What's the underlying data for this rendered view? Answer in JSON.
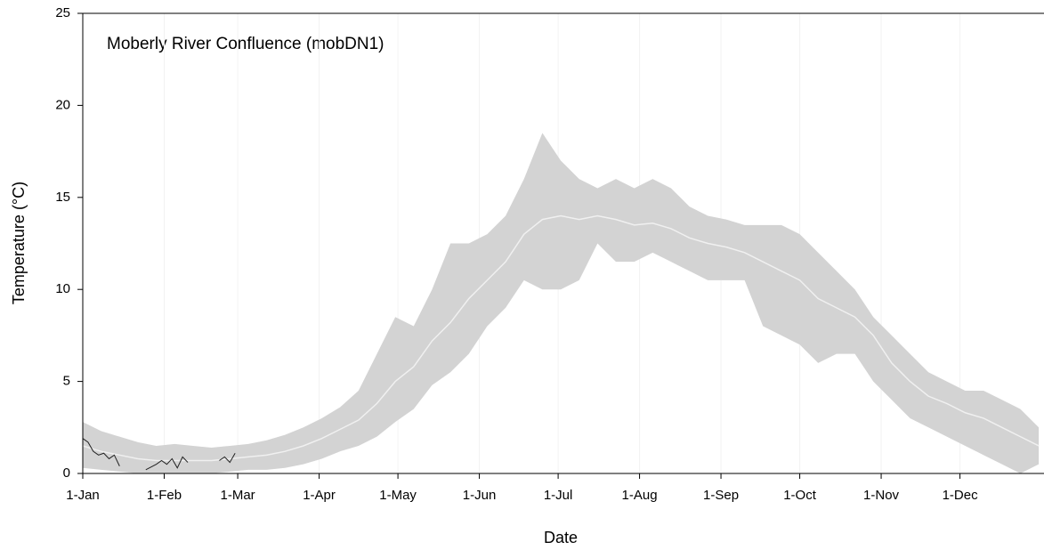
{
  "chart_data": {
    "type": "band",
    "title": "Moberly River Confluence (mobDN1)",
    "x_label": "Date",
    "y_label": "Temperature (°C)",
    "xlim": [
      0,
      366
    ],
    "xticks": [
      {
        "value": 0,
        "label": "1-Jan"
      },
      {
        "value": 31,
        "label": "1-Feb"
      },
      {
        "value": 59,
        "label": "1-Mar"
      },
      {
        "value": 90,
        "label": "1-Apr"
      },
      {
        "value": 120,
        "label": "1-May"
      },
      {
        "value": 151,
        "label": "1-Jun"
      },
      {
        "value": 181,
        "label": "1-Jul"
      },
      {
        "value": 212,
        "label": "1-Aug"
      },
      {
        "value": 243,
        "label": "1-Sep"
      },
      {
        "value": 273,
        "label": "1-Oct"
      },
      {
        "value": 304,
        "label": "1-Nov"
      },
      {
        "value": 334,
        "label": "1-Dec"
      }
    ],
    "ylim": [
      0,
      25
    ],
    "yticks": [
      0,
      5,
      10,
      15,
      20,
      25
    ],
    "grid": true,
    "x": [
      0,
      7,
      14,
      21,
      28,
      35,
      42,
      49,
      56,
      63,
      70,
      77,
      84,
      91,
      98,
      105,
      112,
      119,
      126,
      133,
      140,
      147,
      154,
      161,
      168,
      175,
      182,
      189,
      196,
      203,
      210,
      217,
      224,
      231,
      238,
      245,
      252,
      259,
      266,
      273,
      280,
      287,
      294,
      301,
      308,
      315,
      322,
      329,
      336,
      343,
      350,
      357,
      364
    ],
    "series": [
      {
        "color": "#d3d3d3",
        "values": [
          2.8,
          2.3,
          2.0,
          1.7,
          1.5,
          1.6,
          1.5,
          1.4,
          1.5,
          1.6,
          1.8,
          2.1,
          2.5,
          3.0,
          3.6,
          4.5,
          6.5,
          8.5,
          8.0,
          10.0,
          12.5,
          12.5,
          13.0,
          14.0,
          16.0,
          18.5,
          17.0,
          16.0,
          15.5,
          16.0,
          15.5,
          16.0,
          15.5,
          14.5,
          14.0,
          13.8,
          13.5,
          13.5,
          13.5,
          13.0,
          12.0,
          11.0,
          10.0,
          8.5,
          7.5,
          6.5,
          5.5,
          5.0,
          4.5,
          4.5,
          4.0,
          3.5,
          2.5
        ]
      },
      {
        "color": "#d3d3d3",
        "values": [
          0.3,
          0.2,
          0.1,
          0,
          0,
          0,
          0,
          0,
          0.1,
          0.2,
          0.2,
          0.3,
          0.5,
          0.8,
          1.2,
          1.5,
          2.0,
          2.8,
          3.5,
          4.8,
          5.5,
          6.5,
          8.0,
          9.0,
          10.5,
          10.0,
          10.0,
          10.5,
          12.5,
          11.5,
          11.5,
          12.0,
          11.5,
          11.0,
          10.5,
          10.5,
          10.5,
          8.0,
          7.5,
          7.0,
          6.0,
          6.5,
          6.5,
          5.0,
          4.0,
          3.0,
          2.5,
          2.0,
          1.5,
          1.0,
          0.5,
          0,
          0.5
        ]
      },
      {
        "color": "#f0f0f0",
        "values": [
          1.5,
          1.2,
          1.0,
          0.8,
          0.7,
          0.7,
          0.7,
          0.7,
          0.8,
          0.9,
          1.0,
          1.2,
          1.5,
          1.9,
          2.4,
          2.9,
          3.8,
          5.0,
          5.8,
          7.2,
          8.2,
          9.5,
          10.5,
          11.5,
          13.0,
          13.8,
          14.0,
          13.8,
          14.0,
          13.8,
          13.5,
          13.6,
          13.3,
          12.8,
          12.5,
          12.3,
          12.0,
          11.5,
          11.0,
          10.5,
          9.5,
          9.0,
          8.5,
          7.5,
          6.0,
          5.0,
          4.2,
          3.8,
          3.3,
          3.0,
          2.5,
          2.0,
          1.5
        ]
      },
      {
        "color": "#222222",
        "x": [
          0,
          2,
          4,
          6,
          8,
          10,
          12,
          14,
          20,
          24,
          28,
          30,
          32,
          34,
          36,
          38,
          40,
          50,
          52,
          54,
          56,
          58
        ],
        "values": [
          1.9,
          1.7,
          1.2,
          1.0,
          1.1,
          0.8,
          1.0,
          0.4,
          null,
          0.2,
          0.5,
          0.7,
          0.5,
          0.8,
          0.3,
          0.9,
          0.6,
          null,
          0.7,
          0.9,
          0.6,
          1.1
        ]
      }
    ]
  }
}
